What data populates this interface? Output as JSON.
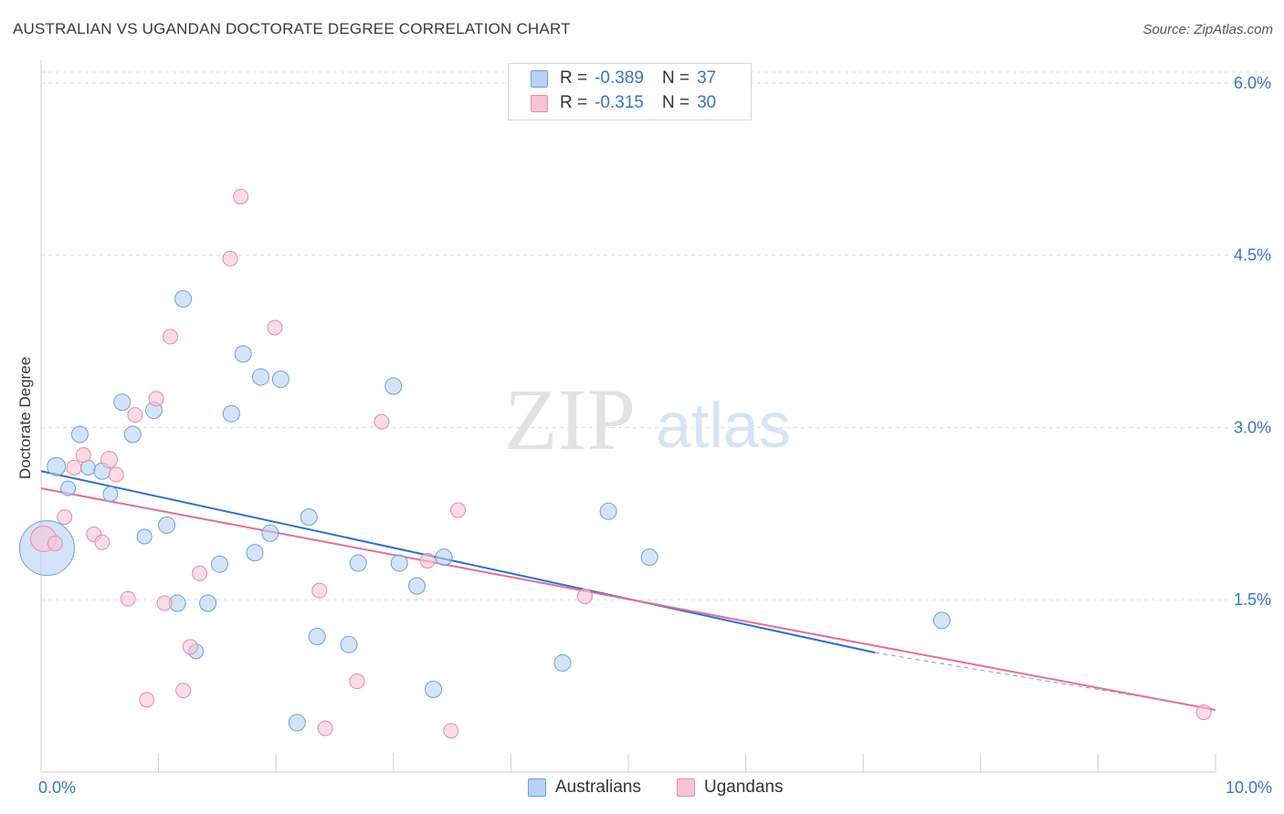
{
  "header": {
    "title": "AUSTRALIAN VS UGANDAN DOCTORATE DEGREE CORRELATION CHART",
    "source": "Source: ZipAtlas.com"
  },
  "watermark": {
    "zip": "ZIP",
    "atlas": "atlas"
  },
  "legend": {
    "rows": [
      {
        "r_label": "R =",
        "r_value": "-0.389",
        "n_label": "N =",
        "n_value": "37"
      },
      {
        "r_label": "R =",
        "r_value": "-0.315",
        "n_label": "N =",
        "n_value": "30"
      }
    ]
  },
  "bottom_legend": {
    "australians": "Australians",
    "ugandans": "Ugandans"
  },
  "colors": {
    "blue_fill": "#b8d2f4",
    "blue_stroke": "#6f9fdc",
    "blue_line": "#2f6fcf",
    "pink_fill": "#f7c4d4",
    "pink_stroke": "#e88aa8",
    "pink_line": "#e0709a",
    "tick_label": "#3a74c9",
    "grid": "#dcdcdc"
  },
  "chart_data": {
    "type": "scatter",
    "title": "AUSTRALIAN VS UGANDAN DOCTORATE DEGREE CORRELATION CHART",
    "xlabel": "",
    "ylabel": "Doctorate Degree",
    "xlim": [
      0,
      10
    ],
    "ylim": [
      0,
      6.15
    ],
    "x_tick_labels": [
      {
        "value": 0,
        "label": "0.0%"
      },
      {
        "value": 10,
        "label": "10.0%"
      }
    ],
    "y_ticks": [
      {
        "value": 1.5,
        "label": "1.5%"
      },
      {
        "value": 3.0,
        "label": "3.0%"
      },
      {
        "value": 4.5,
        "label": "4.5%"
      },
      {
        "value": 6.0,
        "label": "6.0%"
      }
    ],
    "x_minor_ticks": [
      1,
      2,
      3,
      4,
      5,
      6,
      7,
      8,
      9,
      10
    ],
    "grid": true,
    "series": [
      {
        "name": "Australians",
        "color": "#6f9fdc",
        "points": [
          [
            0.05,
            1.95,
            30
          ],
          [
            0.13,
            2.66,
            10
          ],
          [
            0.23,
            2.47,
            8
          ],
          [
            0.33,
            2.94,
            9
          ],
          [
            0.4,
            2.65,
            8
          ],
          [
            0.52,
            2.62,
            9
          ],
          [
            0.59,
            2.42,
            8
          ],
          [
            0.69,
            3.22,
            9
          ],
          [
            0.78,
            2.94,
            9
          ],
          [
            0.88,
            2.05,
            8
          ],
          [
            0.96,
            3.15,
            9
          ],
          [
            1.07,
            2.15,
            9
          ],
          [
            1.16,
            1.47,
            9
          ],
          [
            1.21,
            4.12,
            9
          ],
          [
            1.32,
            1.05,
            8
          ],
          [
            1.42,
            1.47,
            9
          ],
          [
            1.52,
            1.81,
            9
          ],
          [
            1.62,
            3.12,
            9
          ],
          [
            1.72,
            3.64,
            9
          ],
          [
            1.82,
            1.91,
            9
          ],
          [
            1.87,
            3.44,
            9
          ],
          [
            1.95,
            2.08,
            9
          ],
          [
            2.04,
            3.42,
            9
          ],
          [
            2.18,
            0.43,
            9
          ],
          [
            2.28,
            2.22,
            9
          ],
          [
            2.35,
            1.18,
            9
          ],
          [
            2.62,
            1.11,
            9
          ],
          [
            2.7,
            1.82,
            9
          ],
          [
            3.0,
            3.36,
            9
          ],
          [
            3.05,
            1.82,
            9
          ],
          [
            3.2,
            1.62,
            9
          ],
          [
            3.34,
            0.72,
            9
          ],
          [
            3.43,
            1.87,
            9
          ],
          [
            4.44,
            0.95,
            9
          ],
          [
            4.83,
            2.27,
            9
          ],
          [
            5.18,
            1.87,
            9
          ],
          [
            7.67,
            1.32,
            9
          ]
        ],
        "trend": {
          "x0": 0.0,
          "y0": 2.62,
          "x1": 7.1,
          "y1": 1.04,
          "dash_to_x": 10.0,
          "dash_to_y": 0.55
        }
      },
      {
        "name": "Ugandans",
        "color": "#e88aa8",
        "points": [
          [
            0.02,
            2.03,
            14
          ],
          [
            0.12,
            1.99,
            8
          ],
          [
            0.2,
            2.22,
            8
          ],
          [
            0.28,
            2.65,
            8
          ],
          [
            0.36,
            2.76,
            8
          ],
          [
            0.45,
            2.07,
            8
          ],
          [
            0.52,
            2.0,
            8
          ],
          [
            0.58,
            2.72,
            9
          ],
          [
            0.64,
            2.59,
            8
          ],
          [
            0.74,
            1.51,
            8
          ],
          [
            0.8,
            3.11,
            8
          ],
          [
            0.9,
            0.63,
            8
          ],
          [
            0.98,
            3.25,
            8
          ],
          [
            1.05,
            1.47,
            8
          ],
          [
            1.1,
            3.79,
            8
          ],
          [
            1.21,
            0.71,
            8
          ],
          [
            1.27,
            1.09,
            8
          ],
          [
            1.35,
            1.73,
            8
          ],
          [
            1.61,
            4.47,
            8
          ],
          [
            1.7,
            5.01,
            8
          ],
          [
            1.99,
            3.87,
            8
          ],
          [
            2.37,
            1.58,
            8
          ],
          [
            2.42,
            0.38,
            8
          ],
          [
            2.69,
            0.79,
            8
          ],
          [
            2.9,
            3.05,
            8
          ],
          [
            3.29,
            1.84,
            8
          ],
          [
            3.49,
            0.36,
            8
          ],
          [
            3.55,
            2.28,
            8
          ],
          [
            4.63,
            1.53,
            8
          ],
          [
            9.9,
            0.52,
            8
          ]
        ],
        "trend": {
          "x0": 0.0,
          "y0": 2.47,
          "x1": 10.0,
          "y1": 0.54
        }
      }
    ]
  }
}
